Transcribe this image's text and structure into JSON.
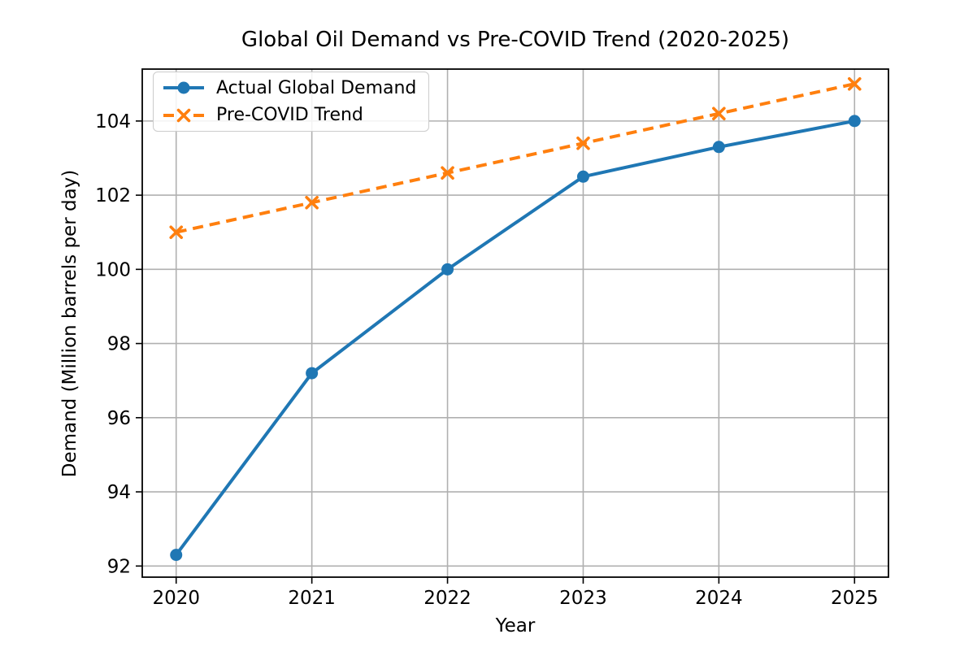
{
  "window": {
    "background": "#ffffff"
  },
  "chart_data": {
    "type": "line",
    "title": "Global Oil Demand vs Pre-COVID Trend (2020-2025)",
    "xlabel": "Year",
    "ylabel": "Demand (Million barrels per day)",
    "x": [
      2020,
      2021,
      2022,
      2023,
      2024,
      2025
    ],
    "series": [
      {
        "name": "Actual Global Demand",
        "values": [
          92.3,
          97.2,
          100.0,
          102.5,
          103.3,
          104.0
        ],
        "color": "#1f77b4",
        "linestyle": "solid",
        "marker": "circle"
      },
      {
        "name": "Pre-COVID Trend",
        "values": [
          101.0,
          101.8,
          102.6,
          103.4,
          104.2,
          105.0
        ],
        "color": "#ff7f0e",
        "linestyle": "dashed",
        "marker": "x"
      }
    ],
    "xticks": [
      2020,
      2021,
      2022,
      2023,
      2024,
      2025
    ],
    "yticks": [
      92,
      94,
      96,
      98,
      100,
      102,
      104
    ],
    "xlim": [
      2019.75,
      2025.25
    ],
    "ylim": [
      91.7,
      105.4
    ],
    "grid": true,
    "grid_color": "#b0b0b0",
    "axis_color": "#000000",
    "legend_position": "upper left"
  }
}
